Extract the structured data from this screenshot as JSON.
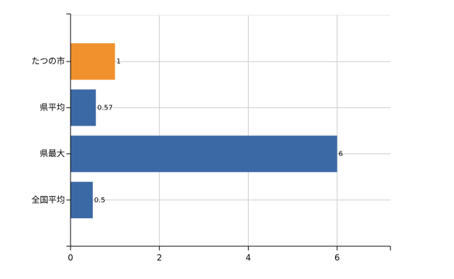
{
  "chart_data": {
    "type": "bar",
    "orientation": "horizontal",
    "categories": [
      "たつの市",
      "県平均",
      "県最大",
      "全国平均"
    ],
    "values": [
      1,
      0.57,
      6,
      0.5
    ],
    "colors": [
      "#f0912e",
      "#3b69a6",
      "#3b69a6",
      "#3b69a6"
    ],
    "xlim": [
      0,
      7.2
    ],
    "xticks": [
      0,
      2,
      4,
      6
    ],
    "grid": true
  }
}
